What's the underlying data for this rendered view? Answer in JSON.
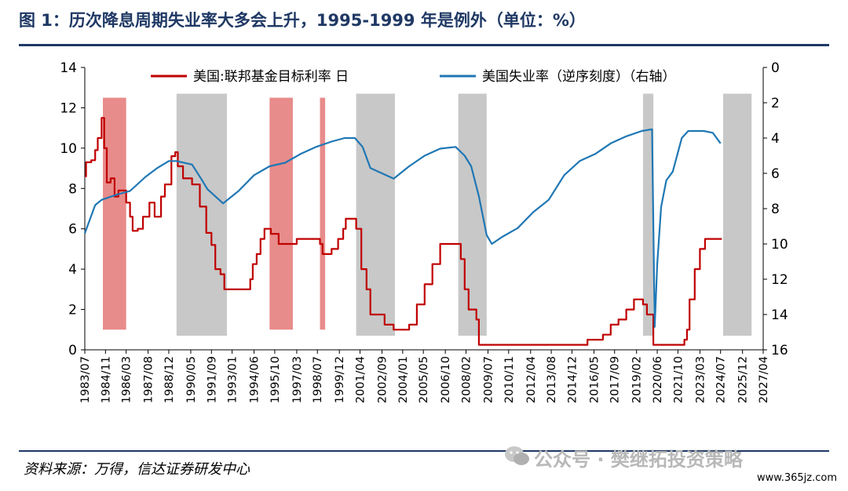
{
  "header": {
    "title": "图 1：历次降息周期失业率大多会上升，1995-1999 年是例外（单位：%）"
  },
  "footer": {
    "source": "资料来源：万得，信达证券研发中心",
    "watermark": "公众号 · 樊继拓投资策略",
    "site": "www.365jz.com"
  },
  "chart_data": {
    "type": "line",
    "title": "图 1：历次降息周期失业率大多会上升，1995-1999 年是例外（单位：%）",
    "x_axis": {
      "type": "date",
      "range": [
        "1983-07",
        "2027-04"
      ],
      "tick_labels": [
        "1983/07",
        "1984/11",
        "1986/03",
        "1987/08",
        "1988/12",
        "1990/05",
        "1991/09",
        "1993/01",
        "1994/06",
        "1995/10",
        "1997/03",
        "1998/07",
        "1999/12",
        "2001/04",
        "2002/09",
        "2004/01",
        "2005/05",
        "2006/10",
        "2008/02",
        "2009/07",
        "2010/11",
        "2012/04",
        "2013/08",
        "2014/12",
        "2016/05",
        "2017/09",
        "2019/02",
        "2020/06",
        "2021/10",
        "2023/03",
        "2024/07",
        "2025/12",
        "2027/04"
      ]
    },
    "y_left": {
      "range": [
        0,
        14
      ],
      "ticks": [
        "0",
        "2",
        "4",
        "6",
        "8",
        "10",
        "12",
        "14"
      ]
    },
    "y_right": {
      "range": [
        0,
        16
      ],
      "reversed": true,
      "ticks": [
        "0",
        "2",
        "4",
        "6",
        "8",
        "10",
        "12",
        "14",
        "16"
      ]
    },
    "grid": false,
    "legend": {
      "placement": "top",
      "colors": [
        "#c00000",
        "#1f77b4"
      ]
    },
    "series": [
      {
        "name": "美国:联邦基金目标利率 日",
        "axis": "left",
        "color": "#c00000",
        "points": [
          [
            "1983-07",
            8.6
          ],
          [
            "1983-08",
            9.3
          ],
          [
            "1983-12",
            9.4
          ],
          [
            "1984-03",
            9.9
          ],
          [
            "1984-05",
            10.5
          ],
          [
            "1984-08",
            11.5
          ],
          [
            "1984-10",
            10.0
          ],
          [
            "1984-12",
            8.3
          ],
          [
            "1985-03",
            8.5
          ],
          [
            "1985-06",
            7.6
          ],
          [
            "1985-09",
            7.9
          ],
          [
            "1986-01",
            7.9
          ],
          [
            "1986-03",
            7.3
          ],
          [
            "1986-06",
            6.6
          ],
          [
            "1986-08",
            5.9
          ],
          [
            "1986-12",
            6.0
          ],
          [
            "1987-04",
            6.6
          ],
          [
            "1987-09",
            7.3
          ],
          [
            "1988-01",
            6.6
          ],
          [
            "1988-06",
            7.6
          ],
          [
            "1988-09",
            8.2
          ],
          [
            "1989-02",
            9.6
          ],
          [
            "1989-05",
            9.8
          ],
          [
            "1989-07",
            9.1
          ],
          [
            "1989-11",
            8.5
          ],
          [
            "1990-06",
            8.2
          ],
          [
            "1990-12",
            7.1
          ],
          [
            "1991-05",
            5.8
          ],
          [
            "1991-09",
            5.2
          ],
          [
            "1991-12",
            4.0
          ],
          [
            "1992-04",
            3.75
          ],
          [
            "1992-07",
            3.0
          ],
          [
            "1994-01",
            3.0
          ],
          [
            "1994-03",
            3.5
          ],
          [
            "1994-05",
            4.25
          ],
          [
            "1994-08",
            4.75
          ],
          [
            "1994-11",
            5.5
          ],
          [
            "1995-02",
            6.0
          ],
          [
            "1995-07",
            5.75
          ],
          [
            "1996-01",
            5.25
          ],
          [
            "1997-03",
            5.5
          ],
          [
            "1998-09",
            5.25
          ],
          [
            "1998-11",
            4.75
          ],
          [
            "1999-06",
            5.0
          ],
          [
            "1999-11",
            5.5
          ],
          [
            "2000-03",
            6.0
          ],
          [
            "2000-05",
            6.5
          ],
          [
            "2001-01",
            6.0
          ],
          [
            "2001-05",
            4.0
          ],
          [
            "2001-09",
            3.0
          ],
          [
            "2001-12",
            1.75
          ],
          [
            "2002-11",
            1.25
          ],
          [
            "2003-06",
            1.0
          ],
          [
            "2004-06",
            1.25
          ],
          [
            "2004-12",
            2.25
          ],
          [
            "2005-06",
            3.25
          ],
          [
            "2005-12",
            4.25
          ],
          [
            "2006-06",
            5.25
          ],
          [
            "2007-08",
            5.25
          ],
          [
            "2007-10",
            4.5
          ],
          [
            "2008-01",
            3.0
          ],
          [
            "2008-04",
            2.0
          ],
          [
            "2008-10",
            1.5
          ],
          [
            "2008-12",
            0.25
          ],
          [
            "2015-12",
            0.5
          ],
          [
            "2016-12",
            0.75
          ],
          [
            "2017-06",
            1.25
          ],
          [
            "2017-12",
            1.5
          ],
          [
            "2018-06",
            2.0
          ],
          [
            "2018-12",
            2.5
          ],
          [
            "2019-07",
            2.25
          ],
          [
            "2019-10",
            1.75
          ],
          [
            "2020-03",
            0.25
          ],
          [
            "2022-03",
            0.5
          ],
          [
            "2022-05",
            1.0
          ],
          [
            "2022-07",
            2.5
          ],
          [
            "2022-11",
            4.0
          ],
          [
            "2023-03",
            5.0
          ],
          [
            "2023-07",
            5.5
          ],
          [
            "2024-08",
            5.5
          ]
        ]
      },
      {
        "name": "美国失业率（逆序刻度）（右轴）",
        "axis": "right",
        "color": "#1f77b4",
        "points": [
          [
            "1983-07",
            9.4
          ],
          [
            "1984-03",
            7.8
          ],
          [
            "1984-08",
            7.5
          ],
          [
            "1985-08",
            7.2
          ],
          [
            "1986-06",
            7.0
          ],
          [
            "1987-06",
            6.2
          ],
          [
            "1988-03",
            5.7
          ],
          [
            "1988-12",
            5.3
          ],
          [
            "1989-06",
            5.3
          ],
          [
            "1990-06",
            5.5
          ],
          [
            "1991-01",
            6.3
          ],
          [
            "1991-06",
            6.9
          ],
          [
            "1992-06",
            7.7
          ],
          [
            "1993-06",
            7.0
          ],
          [
            "1994-06",
            6.1
          ],
          [
            "1995-06",
            5.6
          ],
          [
            "1996-06",
            5.4
          ],
          [
            "1997-06",
            4.9
          ],
          [
            "1998-06",
            4.5
          ],
          [
            "1999-06",
            4.2
          ],
          [
            "2000-04",
            4.0
          ],
          [
            "2000-12",
            4.0
          ],
          [
            "2001-06",
            4.5
          ],
          [
            "2001-12",
            5.7
          ],
          [
            "2002-06",
            5.9
          ],
          [
            "2003-06",
            6.3
          ],
          [
            "2004-06",
            5.6
          ],
          [
            "2005-06",
            5.0
          ],
          [
            "2006-06",
            4.6
          ],
          [
            "2007-06",
            4.5
          ],
          [
            "2008-01",
            5.0
          ],
          [
            "2008-06",
            5.6
          ],
          [
            "2008-12",
            7.3
          ],
          [
            "2009-06",
            9.5
          ],
          [
            "2009-10",
            10.0
          ],
          [
            "2010-06",
            9.6
          ],
          [
            "2011-06",
            9.1
          ],
          [
            "2012-06",
            8.2
          ],
          [
            "2013-06",
            7.5
          ],
          [
            "2014-06",
            6.1
          ],
          [
            "2015-06",
            5.3
          ],
          [
            "2016-06",
            4.9
          ],
          [
            "2017-06",
            4.3
          ],
          [
            "2018-06",
            3.9
          ],
          [
            "2019-06",
            3.6
          ],
          [
            "2020-02",
            3.5
          ],
          [
            "2020-04",
            14.7
          ],
          [
            "2020-06",
            11.1
          ],
          [
            "2020-09",
            7.9
          ],
          [
            "2021-01",
            6.4
          ],
          [
            "2021-06",
            5.9
          ],
          [
            "2022-01",
            4.0
          ],
          [
            "2022-06",
            3.6
          ],
          [
            "2023-06",
            3.6
          ],
          [
            "2024-01",
            3.7
          ],
          [
            "2024-07",
            4.3
          ]
        ]
      }
    ],
    "shaded_periods": [
      {
        "color": "#e88b8b",
        "start": "1984-09",
        "end": "1986-03"
      },
      {
        "color": "#c8c8c8",
        "start": "1989-06",
        "end": "1992-09"
      },
      {
        "color": "#e88b8b",
        "start": "1995-06",
        "end": "1996-12"
      },
      {
        "color": "#e88b8b",
        "start": "1998-09",
        "end": "1999-01"
      },
      {
        "color": "#c8c8c8",
        "start": "2001-01",
        "end": "2003-07"
      },
      {
        "color": "#c8c8c8",
        "start": "2007-08",
        "end": "2009-06"
      },
      {
        "color": "#c8c8c8",
        "start": "2019-07",
        "end": "2020-03"
      },
      {
        "color": "#c8c8c8",
        "start": "2024-09",
        "end": "2026-07"
      }
    ]
  }
}
